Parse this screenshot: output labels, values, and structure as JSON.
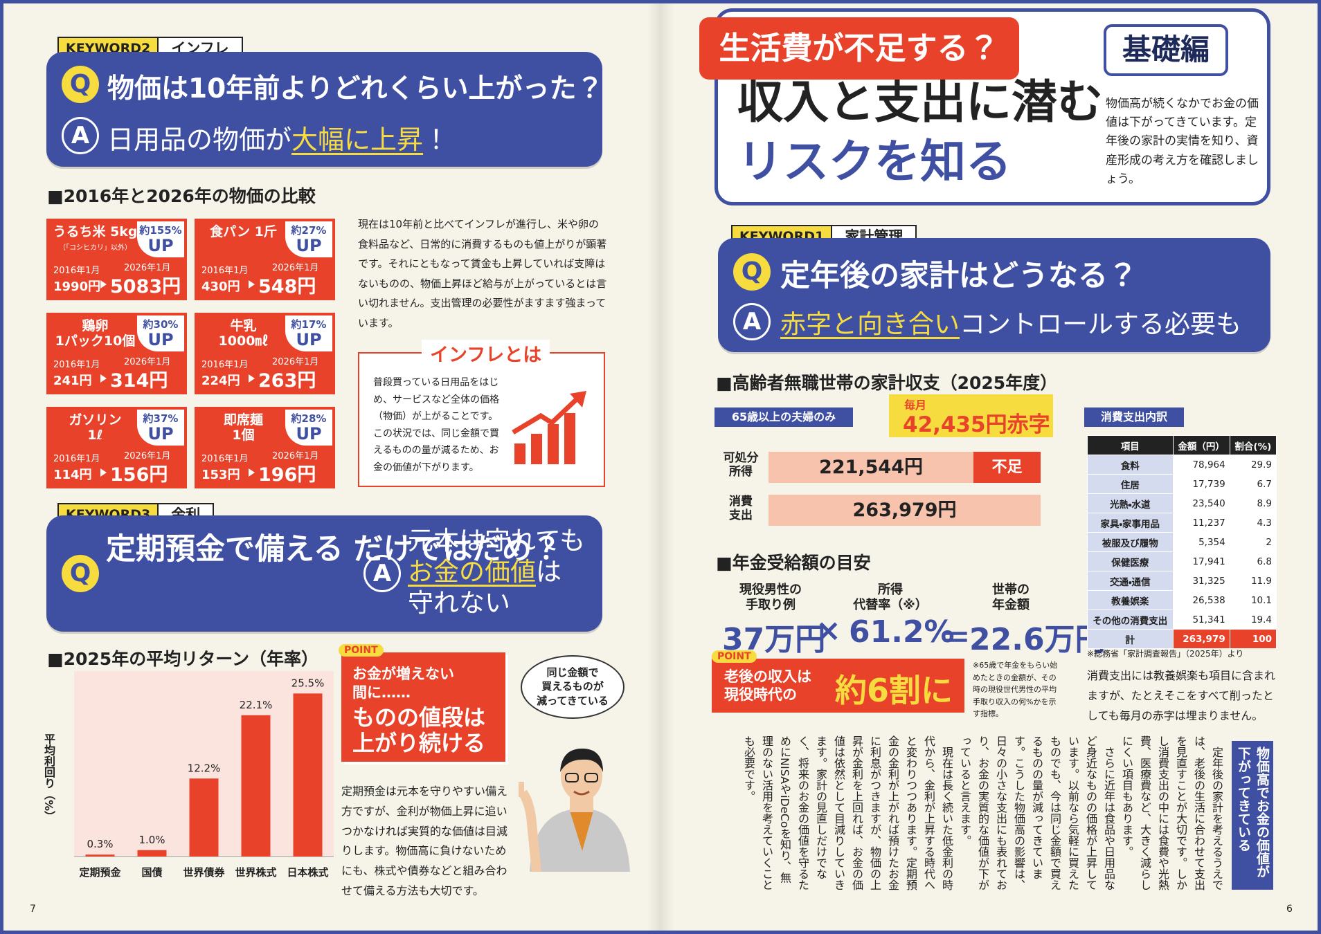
{
  "page_numbers": {
    "left": "7",
    "right": "6"
  },
  "qa_marks": {
    "q": "Q",
    "a": "A"
  },
  "keyword2": {
    "tag": "KEYWORD2",
    "topic": "インフレ",
    "question": "物価は10年前よりどれくらい上がった？",
    "answer": [
      "日用品の物価が",
      "大幅に上昇",
      "！"
    ]
  },
  "price_comparison": {
    "title": "■2016年と2026年の物価の比較",
    "items": [
      {
        "name": "うるち米 5kg",
        "note": "（「コシヒカリ」以外）",
        "rate": "約155%",
        "up": "UP",
        "before_date": "2016年1月",
        "before": "1990円",
        "after_date": "2026年1月",
        "after": "5083円"
      },
      {
        "name": "食パン 1斤",
        "rate": "約27%",
        "up": "UP",
        "before_date": "2016年1月",
        "before": "430円",
        "after_date": "2026年1月",
        "after": "548円"
      },
      {
        "name": "鶏卵\n1パック10個",
        "rate": "約30%",
        "up": "UP",
        "before_date": "2016年1月",
        "before": "241円",
        "after_date": "2026年1月",
        "after": "314円"
      },
      {
        "name": "牛乳\n1000㎖",
        "rate": "約17%",
        "up": "UP",
        "before_date": "2016年1月",
        "before": "224円",
        "after_date": "2026年1月",
        "after": "263円"
      },
      {
        "name": "ガソリン\n1ℓ",
        "rate": "約37%",
        "up": "UP",
        "before_date": "2016年1月",
        "before": "114円",
        "after_date": "2026年1月",
        "after": "156円"
      },
      {
        "name": "即席麺\n1個",
        "rate": "約28%",
        "up": "UP",
        "before_date": "2016年1月",
        "before": "153円",
        "after_date": "2026年1月",
        "after": "196円"
      }
    ]
  },
  "inflation_text": "現在は10年前と比べてインフレが進行し、米や卵の食料品など、日常的に消費するものも値上がりが顕著です。それにともなって賃金も上昇していれば支障はないものの、物価上昇ほど給与が上がっているとは言い切れません。支出管理の必要性がますます強まっています。",
  "inflation_box": {
    "title": "インフレとは",
    "text": "普段買っている日用品をはじめ、サービスなど全体の価格（物価）が上がることです。この状況では、同じ金額で買えるものの量が減るため、お金の価値が下がります。"
  },
  "keyword3": {
    "tag": "KEYWORD3",
    "topic": "金利",
    "question": "定期預金で備える\nだけではだめ？",
    "answer": [
      "元本は守れても",
      "お金の価値",
      "は",
      "守れない"
    ]
  },
  "chart_data": {
    "type": "bar",
    "title": "■2025年の平均リターン（年率）",
    "y_label": "平均利回り（%）",
    "categories": [
      "定期預金",
      "国債",
      "世界債券",
      "世界株式",
      "日本株式"
    ],
    "values": [
      0.3,
      1.0,
      12.2,
      22.1,
      25.5
    ],
    "value_labels": [
      "0.3%",
      "1.0%",
      "12.2%",
      "22.1%",
      "25.5%"
    ],
    "color": "#e8432a",
    "ylim": [
      0,
      29
    ]
  },
  "point_left": {
    "badge": "POINT",
    "lead": "お金が増えない\n間に……",
    "main": "ものの値段は\n上がり続ける"
  },
  "bubble": "同じ金額で\n買えるものが\n減ってきている",
  "deposit_text": "定期預金は元本を守りやすい備え方ですが、金利が物価上昇に追いつかなければ実質的な価値は目減りします。物価高に負けないためにも、株式や債券などと組み合わせて備える方法も大切です。",
  "header": {
    "banner": "生活費が不足する？",
    "level": "基礎編",
    "title_lines": [
      "収入と支出に潜む",
      "リスクを知る"
    ],
    "lead": "物価高が続くなかでお金の価値は下がってきています。定年後の家計の実情を知り、資産形成の考え方を確認しましょう。"
  },
  "keyword1": {
    "tag": "KEYWORD1",
    "topic": "家計管理",
    "question": "定年後の家計はどうなる？",
    "answer": [
      "赤字と向き合い",
      "コントロールする必要も"
    ]
  },
  "household": {
    "title": "■高齢者無職世帯の家計収支（2025年度）",
    "group": "65歳以上の夫婦のみ",
    "deficit_label": "毎月",
    "deficit": "42,435円赤字",
    "income_label": "可処分\n所得",
    "income": "221,544円",
    "shortfall": "不足",
    "expense_label": "消費\n支出",
    "expense": "263,979円"
  },
  "pension": {
    "title": "■年金受給額の目安",
    "labels": [
      "現役男性の\n手取り例",
      "所得\n代替率（※）",
      "世帯の\n年金額"
    ],
    "values": [
      "37万円",
      "61.2%",
      "22.6万円"
    ],
    "ops": [
      "×",
      "＝"
    ]
  },
  "point_right": {
    "badge": "POINT",
    "lead": "老後の収入は\n現役時代の",
    "main": "約6割に"
  },
  "pension_note": "※65歳で年金をもらい始めたときの金額が、その時の現役世代男性の平均手取り収入の何%かを示す指標。",
  "expense_table": {
    "title": "消費支出内訳",
    "header": [
      "項目",
      "金額（円）",
      "割合(%)"
    ],
    "rows": [
      [
        "食料",
        "78,964",
        "29.9"
      ],
      [
        "住居",
        "17,739",
        "6.7"
      ],
      [
        "光熱・水道",
        "23,540",
        "8.9"
      ],
      [
        "家具・家事用品",
        "11,237",
        "4.3"
      ],
      [
        "被服及び履物",
        "5,354",
        "2"
      ],
      [
        "保健医療",
        "17,941",
        "6.8"
      ],
      [
        "交通・通信",
        "31,325",
        "11.9"
      ],
      [
        "教養娯楽",
        "26,538",
        "10.1"
      ],
      [
        "その他の消費支出",
        "51,341",
        "19.4"
      ],
      [
        "計",
        "263,979",
        "100"
      ]
    ],
    "source": "※総務省「家計調査報告」（2025年）より"
  },
  "table_text": "消費支出には教養娯楽も項目に含まれますが、たとえそこをすべて削ったとしても毎月の赤字は埋まりません。",
  "column": {
    "heading": "物価高でお金の価値が下がってきている",
    "paragraphs": [
      "定年後の家計を考えるうえでは、老後の生活に合わせて支出を見直すことが大切です。しかし消費支出の中には食費や光熱費、医療費など、大きく減らしにくい項目もあります。",
      "さらに近年は食品や日用品など身近なものの価格が上昇しています。以前なら気軽に買えたものでも、今は同じ金額で買えるものの量が減ってきています。こうした物価高の影響は、日々の小さな支出にも表れており、お金の実質的な価値が下がっていると言えます。",
      "現在は長く続いた低金利の時代から、金利が上昇する時代へと変わりつつあります。定期預金の金利が上がれば預けたお金に利息がつきますが、物価の上昇が金利を上回れば、お金の価値は依然として目減りしていきます。家計の見直しだけでなく、将来のお金の価値を守るためにNISAやiDeCoを知り、無理のない活用を考えていくことも必要です。"
    ]
  }
}
